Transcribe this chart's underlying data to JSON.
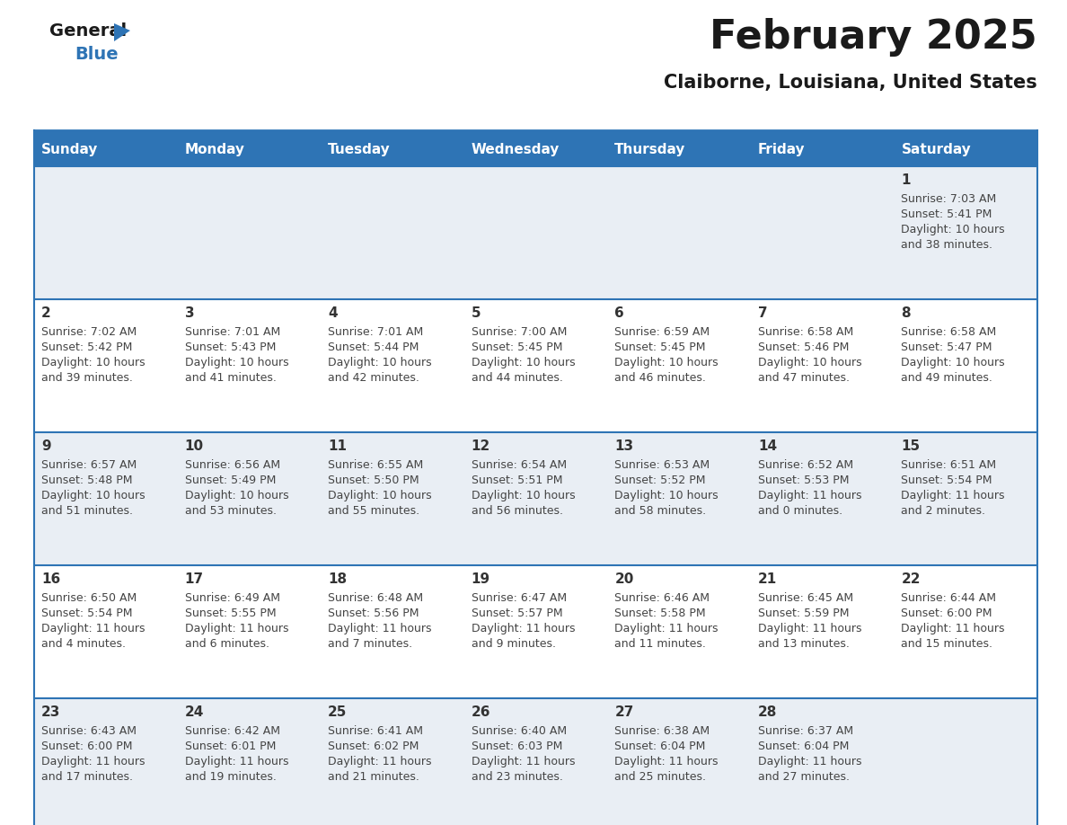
{
  "title": "February 2025",
  "subtitle": "Claiborne, Louisiana, United States",
  "header_bg": "#2E74B5",
  "header_text_color": "#FFFFFF",
  "day_headers": [
    "Sunday",
    "Monday",
    "Tuesday",
    "Wednesday",
    "Thursday",
    "Friday",
    "Saturday"
  ],
  "alt_row_bg": "#E9EEF4",
  "normal_row_bg": "#FFFFFF",
  "border_color": "#2E74B5",
  "date_color": "#333333",
  "text_color": "#444444",
  "logo_general_color": "#1a1a1a",
  "logo_blue_color": "#2E74B5",
  "logo_triangle_color": "#2E74B5",
  "calendar_data": [
    [
      {
        "day": null
      },
      {
        "day": null
      },
      {
        "day": null
      },
      {
        "day": null
      },
      {
        "day": null
      },
      {
        "day": null
      },
      {
        "day": 1,
        "sunrise": "7:03 AM",
        "sunset": "5:41 PM",
        "daylight_h": "10 hours",
        "daylight_m": "and 38 minutes."
      }
    ],
    [
      {
        "day": 2,
        "sunrise": "7:02 AM",
        "sunset": "5:42 PM",
        "daylight_h": "10 hours",
        "daylight_m": "and 39 minutes."
      },
      {
        "day": 3,
        "sunrise": "7:01 AM",
        "sunset": "5:43 PM",
        "daylight_h": "10 hours",
        "daylight_m": "and 41 minutes."
      },
      {
        "day": 4,
        "sunrise": "7:01 AM",
        "sunset": "5:44 PM",
        "daylight_h": "10 hours",
        "daylight_m": "and 42 minutes."
      },
      {
        "day": 5,
        "sunrise": "7:00 AM",
        "sunset": "5:45 PM",
        "daylight_h": "10 hours",
        "daylight_m": "and 44 minutes."
      },
      {
        "day": 6,
        "sunrise": "6:59 AM",
        "sunset": "5:45 PM",
        "daylight_h": "10 hours",
        "daylight_m": "and 46 minutes."
      },
      {
        "day": 7,
        "sunrise": "6:58 AM",
        "sunset": "5:46 PM",
        "daylight_h": "10 hours",
        "daylight_m": "and 47 minutes."
      },
      {
        "day": 8,
        "sunrise": "6:58 AM",
        "sunset": "5:47 PM",
        "daylight_h": "10 hours",
        "daylight_m": "and 49 minutes."
      }
    ],
    [
      {
        "day": 9,
        "sunrise": "6:57 AM",
        "sunset": "5:48 PM",
        "daylight_h": "10 hours",
        "daylight_m": "and 51 minutes."
      },
      {
        "day": 10,
        "sunrise": "6:56 AM",
        "sunset": "5:49 PM",
        "daylight_h": "10 hours",
        "daylight_m": "and 53 minutes."
      },
      {
        "day": 11,
        "sunrise": "6:55 AM",
        "sunset": "5:50 PM",
        "daylight_h": "10 hours",
        "daylight_m": "and 55 minutes."
      },
      {
        "day": 12,
        "sunrise": "6:54 AM",
        "sunset": "5:51 PM",
        "daylight_h": "10 hours",
        "daylight_m": "and 56 minutes."
      },
      {
        "day": 13,
        "sunrise": "6:53 AM",
        "sunset": "5:52 PM",
        "daylight_h": "10 hours",
        "daylight_m": "and 58 minutes."
      },
      {
        "day": 14,
        "sunrise": "6:52 AM",
        "sunset": "5:53 PM",
        "daylight_h": "11 hours",
        "daylight_m": "and 0 minutes."
      },
      {
        "day": 15,
        "sunrise": "6:51 AM",
        "sunset": "5:54 PM",
        "daylight_h": "11 hours",
        "daylight_m": "and 2 minutes."
      }
    ],
    [
      {
        "day": 16,
        "sunrise": "6:50 AM",
        "sunset": "5:54 PM",
        "daylight_h": "11 hours",
        "daylight_m": "and 4 minutes."
      },
      {
        "day": 17,
        "sunrise": "6:49 AM",
        "sunset": "5:55 PM",
        "daylight_h": "11 hours",
        "daylight_m": "and 6 minutes."
      },
      {
        "day": 18,
        "sunrise": "6:48 AM",
        "sunset": "5:56 PM",
        "daylight_h": "11 hours",
        "daylight_m": "and 7 minutes."
      },
      {
        "day": 19,
        "sunrise": "6:47 AM",
        "sunset": "5:57 PM",
        "daylight_h": "11 hours",
        "daylight_m": "and 9 minutes."
      },
      {
        "day": 20,
        "sunrise": "6:46 AM",
        "sunset": "5:58 PM",
        "daylight_h": "11 hours",
        "daylight_m": "and 11 minutes."
      },
      {
        "day": 21,
        "sunrise": "6:45 AM",
        "sunset": "5:59 PM",
        "daylight_h": "11 hours",
        "daylight_m": "and 13 minutes."
      },
      {
        "day": 22,
        "sunrise": "6:44 AM",
        "sunset": "6:00 PM",
        "daylight_h": "11 hours",
        "daylight_m": "and 15 minutes."
      }
    ],
    [
      {
        "day": 23,
        "sunrise": "6:43 AM",
        "sunset": "6:00 PM",
        "daylight_h": "11 hours",
        "daylight_m": "and 17 minutes."
      },
      {
        "day": 24,
        "sunrise": "6:42 AM",
        "sunset": "6:01 PM",
        "daylight_h": "11 hours",
        "daylight_m": "and 19 minutes."
      },
      {
        "day": 25,
        "sunrise": "6:41 AM",
        "sunset": "6:02 PM",
        "daylight_h": "11 hours",
        "daylight_m": "and 21 minutes."
      },
      {
        "day": 26,
        "sunrise": "6:40 AM",
        "sunset": "6:03 PM",
        "daylight_h": "11 hours",
        "daylight_m": "and 23 minutes."
      },
      {
        "day": 27,
        "sunrise": "6:38 AM",
        "sunset": "6:04 PM",
        "daylight_h": "11 hours",
        "daylight_m": "and 25 minutes."
      },
      {
        "day": 28,
        "sunrise": "6:37 AM",
        "sunset": "6:04 PM",
        "daylight_h": "11 hours",
        "daylight_m": "and 27 minutes."
      },
      {
        "day": null
      }
    ]
  ]
}
